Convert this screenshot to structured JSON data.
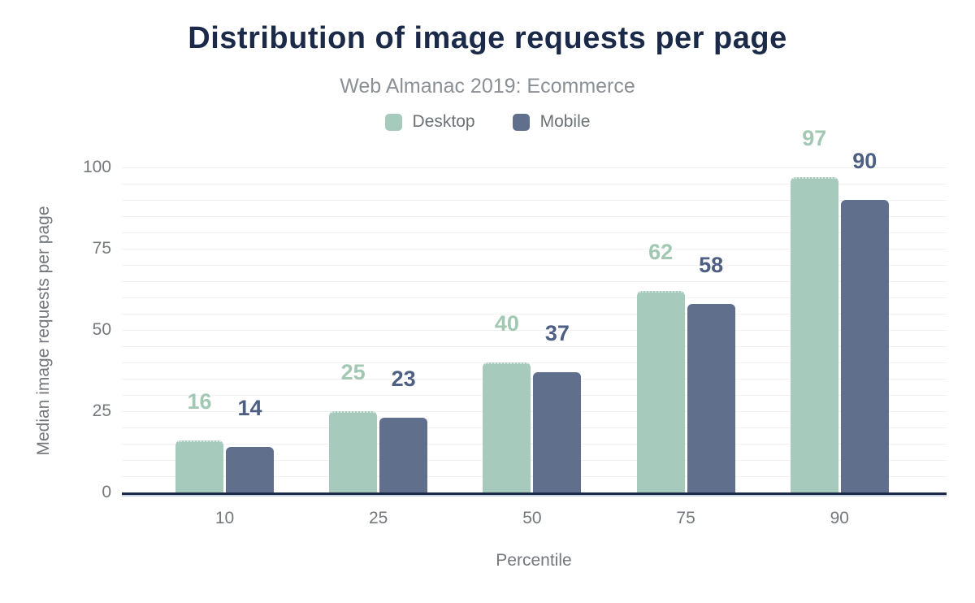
{
  "chart_data": {
    "type": "bar",
    "title": "Distribution of image requests per page",
    "subtitle": "Web Almanac 2019: Ecommerce",
    "xlabel": "Percentile",
    "ylabel": "Median image requests per page",
    "categories": [
      "10",
      "25",
      "50",
      "75",
      "90"
    ],
    "series": [
      {
        "name": "Desktop",
        "color": "#a6cabb",
        "label_color": "#a2c8b3",
        "values": [
          16,
          25,
          40,
          62,
          97
        ]
      },
      {
        "name": "Mobile",
        "color": "#5f6f8c",
        "label_color": "#4d5f82",
        "values": [
          14,
          23,
          37,
          58,
          90
        ]
      }
    ],
    "ylim": [
      0,
      110
    ],
    "yticks": [
      0,
      25,
      50,
      75,
      100
    ],
    "grid": {
      "show": true,
      "minor_step": 5,
      "color": "#f2f2f2"
    },
    "legend_position": "top",
    "legend_text_color": "#6c7176",
    "axis_line_color": "#1b2a49",
    "tick_label_color": "#74787d",
    "title_color": "#1b2a49",
    "subtitle_color": "#8b9095"
  }
}
